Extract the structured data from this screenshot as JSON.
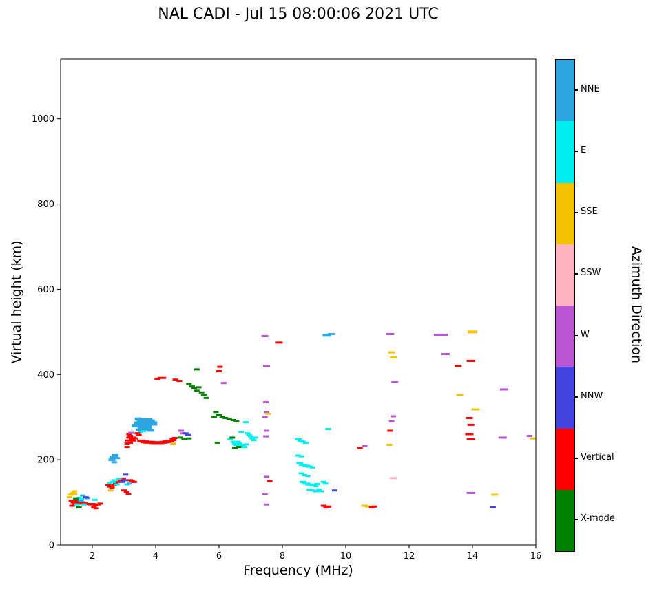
{
  "title": "NAL CADI - Jul 15 08:00:06 2021 UTC",
  "x_label": "Frequency (MHz)",
  "y_label": "Virtual height (km)",
  "colorbar_title": "Azimuth Direction",
  "chart_data": {
    "type": "scatter",
    "title": "NAL CADI - Jul 15 08:00:06 2021 UTC",
    "xlabel": "Frequency (MHz)",
    "ylabel": "Virtual height (km)",
    "xlim": [
      1,
      16
    ],
    "ylim": [
      0,
      1140
    ],
    "x_ticks": [
      2,
      4,
      6,
      8,
      10,
      12,
      14,
      16
    ],
    "y_ticks": [
      0,
      200,
      400,
      600,
      800,
      1000
    ],
    "grid": false,
    "legend_position": "right-colorbar",
    "categories": [
      {
        "label": "NNE",
        "color": "#2CA5E2"
      },
      {
        "label": "E",
        "color": "#00EEEE"
      },
      {
        "label": "SSE",
        "color": "#F4C300"
      },
      {
        "label": "SSW",
        "color": "#FFB3C1"
      },
      {
        "label": "W",
        "color": "#BA55D3"
      },
      {
        "label": "NNW",
        "color": "#4343DF"
      },
      {
        "label": "Vertical",
        "color": "#FF0000"
      },
      {
        "label": "X-mode",
        "color": "#008000"
      }
    ],
    "point_format": [
      "freq_MHz",
      "virtual_height_km",
      "category_index",
      "mark_width_px_optional",
      "mark_height_px_optional"
    ],
    "points": [
      [
        1.28,
        112,
        2
      ],
      [
        1.32,
        118,
        2
      ],
      [
        1.38,
        122,
        2
      ],
      [
        1.44,
        120,
        2
      ],
      [
        1.44,
        126,
        2
      ],
      [
        1.34,
        104,
        6
      ],
      [
        1.36,
        92,
        6
      ],
      [
        1.4,
        100,
        6
      ],
      [
        1.46,
        97,
        6
      ],
      [
        1.5,
        104,
        6
      ],
      [
        1.55,
        100,
        6
      ],
      [
        1.62,
        97,
        6
      ],
      [
        1.7,
        100,
        6
      ],
      [
        1.78,
        98,
        6
      ],
      [
        1.86,
        96,
        6
      ],
      [
        1.95,
        95,
        6
      ],
      [
        2.02,
        96,
        6
      ],
      [
        2.05,
        88,
        6
      ],
      [
        2.1,
        93,
        6
      ],
      [
        2.12,
        86,
        6
      ],
      [
        2.18,
        95,
        6
      ],
      [
        2.25,
        97,
        6
      ],
      [
        1.52,
        95,
        1
      ],
      [
        1.58,
        110,
        1
      ],
      [
        1.66,
        108,
        1
      ],
      [
        1.74,
        95,
        1
      ],
      [
        2.08,
        106,
        1
      ],
      [
        1.64,
        103,
        0
      ],
      [
        1.7,
        116,
        0
      ],
      [
        1.84,
        110,
        0
      ],
      [
        1.48,
        108,
        7
      ],
      [
        1.58,
        88,
        7
      ],
      [
        1.8,
        112,
        5
      ],
      [
        2.5,
        140,
        6
      ],
      [
        2.56,
        137,
        6
      ],
      [
        2.62,
        135,
        6
      ],
      [
        2.68,
        140,
        6
      ],
      [
        2.74,
        146,
        6
      ],
      [
        2.8,
        148,
        6
      ],
      [
        2.86,
        152,
        6
      ],
      [
        2.92,
        150,
        6
      ],
      [
        2.98,
        156,
        6
      ],
      [
        2.55,
        145,
        1
      ],
      [
        2.65,
        148,
        1
      ],
      [
        2.72,
        152,
        1
      ],
      [
        2.78,
        142,
        1
      ],
      [
        2.84,
        156,
        1
      ],
      [
        3.1,
        142,
        1
      ],
      [
        2.58,
        128,
        2
      ],
      [
        2.62,
        200,
        0,
        10,
        4
      ],
      [
        2.66,
        206,
        0,
        10,
        4
      ],
      [
        2.72,
        210,
        0,
        10,
        4
      ],
      [
        2.78,
        204,
        0,
        8,
        3
      ],
      [
        2.7,
        194,
        0
      ],
      [
        3.18,
        144,
        0
      ],
      [
        2.95,
        148,
        5
      ],
      [
        3.05,
        152,
        5
      ],
      [
        3.05,
        165,
        5
      ],
      [
        3.0,
        128,
        6
      ],
      [
        3.08,
        124,
        6
      ],
      [
        3.14,
        120,
        6
      ],
      [
        3.2,
        152,
        6
      ],
      [
        3.26,
        150,
        6
      ],
      [
        3.32,
        148,
        6
      ],
      [
        3.1,
        230,
        6
      ],
      [
        3.1,
        238,
        6
      ],
      [
        3.13,
        245,
        6
      ],
      [
        3.16,
        252,
        6
      ],
      [
        3.16,
        260,
        6
      ],
      [
        3.2,
        256,
        6
      ],
      [
        3.2,
        240,
        6
      ],
      [
        3.25,
        248,
        6
      ],
      [
        3.3,
        245,
        6
      ],
      [
        3.3,
        252,
        6
      ],
      [
        3.35,
        250,
        6
      ],
      [
        3.22,
        263,
        4
      ],
      [
        3.4,
        280,
        0,
        14,
        5
      ],
      [
        3.5,
        285,
        0,
        16,
        6
      ],
      [
        3.6,
        288,
        0,
        18,
        7
      ],
      [
        3.7,
        291,
        0,
        18,
        8
      ],
      [
        3.8,
        288,
        0,
        16,
        8
      ],
      [
        3.9,
        285,
        0,
        14,
        6
      ],
      [
        3.6,
        276,
        0,
        16,
        5
      ],
      [
        3.7,
        278,
        0,
        16,
        5
      ],
      [
        3.5,
        270,
        0,
        12,
        4
      ],
      [
        3.45,
        296,
        0,
        10,
        4
      ],
      [
        3.75,
        272,
        0,
        12,
        4
      ],
      [
        3.85,
        269,
        0,
        10,
        4
      ],
      [
        3.52,
        265,
        1
      ],
      [
        3.62,
        267,
        1
      ],
      [
        3.42,
        262,
        6
      ],
      [
        3.47,
        258,
        6
      ],
      [
        3.55,
        244,
        6,
        12,
        4
      ],
      [
        3.65,
        242,
        6,
        12,
        4
      ],
      [
        3.75,
        241,
        6,
        12,
        4
      ],
      [
        3.85,
        241,
        6,
        12,
        4
      ],
      [
        3.95,
        240,
        6,
        12,
        4
      ],
      [
        4.05,
        240,
        6,
        12,
        4
      ],
      [
        4.15,
        240,
        6,
        12,
        4
      ],
      [
        4.25,
        241,
        6,
        12,
        4
      ],
      [
        4.35,
        242,
        6,
        12,
        4
      ],
      [
        4.45,
        244,
        6,
        12,
        4
      ],
      [
        4.55,
        247,
        6,
        10,
        4
      ],
      [
        4.6,
        251,
        6
      ],
      [
        4.55,
        238,
        2
      ],
      [
        4.05,
        390,
        6
      ],
      [
        4.2,
        392,
        6,
        12,
        3
      ],
      [
        4.62,
        388,
        6
      ],
      [
        4.75,
        385,
        6
      ],
      [
        4.8,
        268,
        4
      ],
      [
        4.86,
        262,
        4
      ],
      [
        4.95,
        262,
        5
      ],
      [
        5.02,
        258,
        5
      ],
      [
        4.78,
        252,
        7
      ],
      [
        4.9,
        248,
        7
      ],
      [
        5.05,
        250,
        7
      ],
      [
        5.3,
        412,
        7
      ],
      [
        5.05,
        378,
        7
      ],
      [
        5.15,
        372,
        7
      ],
      [
        5.22,
        368,
        7
      ],
      [
        5.3,
        362,
        7
      ],
      [
        5.36,
        370,
        7
      ],
      [
        5.45,
        358,
        7
      ],
      [
        5.52,
        352,
        7
      ],
      [
        5.6,
        345,
        7
      ],
      [
        5.85,
        300,
        7
      ],
      [
        5.9,
        312,
        7
      ],
      [
        6.0,
        305,
        7
      ],
      [
        6.1,
        300,
        7
      ],
      [
        6.2,
        298,
        7
      ],
      [
        6.32,
        296,
        7
      ],
      [
        6.45,
        293,
        7
      ],
      [
        6.55,
        290,
        7
      ],
      [
        5.95,
        240,
        7
      ],
      [
        6.0,
        408,
        6
      ],
      [
        6.03,
        418,
        6
      ],
      [
        6.15,
        380,
        4
      ],
      [
        6.35,
        248,
        1
      ],
      [
        6.45,
        242,
        1
      ],
      [
        6.5,
        238,
        1
      ],
      [
        6.55,
        235,
        1
      ],
      [
        6.6,
        242,
        1
      ],
      [
        6.65,
        238,
        1
      ],
      [
        6.7,
        235,
        1
      ],
      [
        6.75,
        232,
        1
      ],
      [
        6.8,
        230,
        1
      ],
      [
        6.85,
        236,
        1
      ],
      [
        6.9,
        262,
        1
      ],
      [
        6.95,
        258,
        1
      ],
      [
        7.0,
        255,
        1
      ],
      [
        7.05,
        250,
        1
      ],
      [
        7.1,
        246,
        1
      ],
      [
        7.15,
        252,
        1
      ],
      [
        6.7,
        265,
        1
      ],
      [
        6.85,
        288,
        1
      ],
      [
        6.5,
        228,
        7
      ],
      [
        6.62,
        230,
        7
      ],
      [
        6.42,
        252,
        7
      ],
      [
        7.45,
        490,
        4,
        10,
        3
      ],
      [
        7.5,
        420,
        4,
        10,
        3
      ],
      [
        7.48,
        335,
        4
      ],
      [
        7.5,
        312,
        4
      ],
      [
        7.55,
        308,
        2
      ],
      [
        7.45,
        300,
        4
      ],
      [
        7.5,
        268,
        4
      ],
      [
        7.48,
        255,
        4
      ],
      [
        7.5,
        160,
        4
      ],
      [
        7.45,
        120,
        4
      ],
      [
        7.5,
        95,
        4
      ],
      [
        7.6,
        150,
        6
      ],
      [
        7.9,
        475,
        6,
        10,
        3
      ],
      [
        8.5,
        248,
        1,
        10,
        3
      ],
      [
        8.58,
        244,
        1,
        10,
        3
      ],
      [
        8.66,
        242,
        1
      ],
      [
        8.74,
        240,
        1
      ],
      [
        8.5,
        210,
        1
      ],
      [
        8.6,
        208,
        1
      ],
      [
        8.55,
        192,
        1,
        10,
        3
      ],
      [
        8.65,
        188,
        1,
        12,
        3
      ],
      [
        8.75,
        186,
        1,
        12,
        3
      ],
      [
        8.85,
        184,
        1,
        10,
        3
      ],
      [
        8.95,
        182,
        1
      ],
      [
        8.6,
        168,
        1
      ],
      [
        8.7,
        164,
        1
      ],
      [
        8.8,
        162,
        1
      ],
      [
        8.65,
        148,
        1,
        10,
        3
      ],
      [
        8.75,
        144,
        1,
        12,
        3
      ],
      [
        8.85,
        142,
        1,
        12,
        3
      ],
      [
        8.95,
        140,
        1,
        10,
        3
      ],
      [
        9.05,
        138,
        1
      ],
      [
        9.1,
        143,
        1
      ],
      [
        8.85,
        130,
        1
      ],
      [
        8.95,
        128,
        1
      ],
      [
        9.05,
        126,
        1
      ],
      [
        9.15,
        130,
        1
      ],
      [
        9.22,
        126,
        1
      ],
      [
        9.3,
        148,
        1
      ],
      [
        9.36,
        144,
        1
      ],
      [
        9.45,
        272,
        1
      ],
      [
        9.4,
        492,
        0,
        12,
        4
      ],
      [
        9.55,
        495,
        0,
        10,
        3
      ],
      [
        9.65,
        128,
        5
      ],
      [
        9.3,
        92,
        6
      ],
      [
        9.38,
        88,
        6
      ],
      [
        9.46,
        90,
        6
      ],
      [
        10.45,
        228,
        6
      ],
      [
        10.6,
        232,
        4
      ],
      [
        10.6,
        92,
        2,
        10,
        3
      ],
      [
        10.7,
        90,
        2
      ],
      [
        10.82,
        88,
        6
      ],
      [
        10.9,
        90,
        6
      ],
      [
        11.4,
        495,
        4,
        12,
        3
      ],
      [
        11.45,
        452,
        2,
        10,
        3
      ],
      [
        11.5,
        440,
        2,
        10,
        3
      ],
      [
        11.55,
        383,
        4,
        10,
        3
      ],
      [
        11.5,
        302,
        4
      ],
      [
        11.45,
        290,
        4
      ],
      [
        11.4,
        268,
        6
      ],
      [
        11.38,
        235,
        2
      ],
      [
        11.5,
        157,
        3,
        10,
        3
      ],
      [
        13.0,
        493,
        4,
        20,
        3
      ],
      [
        13.15,
        448,
        4,
        12,
        3
      ],
      [
        13.55,
        420,
        6,
        10,
        3
      ],
      [
        13.6,
        352,
        2,
        10,
        3
      ],
      [
        13.95,
        432,
        6,
        12,
        3
      ],
      [
        14.0,
        500,
        2,
        14,
        4
      ],
      [
        14.1,
        318,
        2,
        12,
        3
      ],
      [
        13.9,
        298,
        6,
        10,
        3
      ],
      [
        13.95,
        282,
        6,
        10,
        3
      ],
      [
        13.9,
        260,
        6,
        12,
        3
      ],
      [
        13.95,
        248,
        6,
        12,
        3
      ],
      [
        13.95,
        122,
        4,
        12,
        3
      ],
      [
        14.7,
        118,
        2,
        10,
        3
      ],
      [
        14.65,
        88,
        5
      ],
      [
        15.0,
        365,
        4,
        12,
        3
      ],
      [
        14.95,
        252,
        4,
        12,
        3
      ],
      [
        15.8,
        256,
        4
      ],
      [
        15.9,
        250,
        2
      ]
    ]
  }
}
